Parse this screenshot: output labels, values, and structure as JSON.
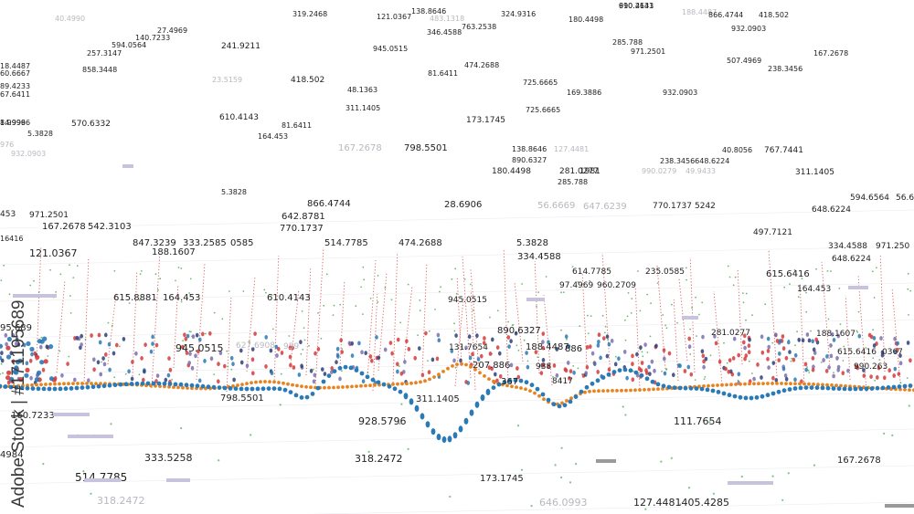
{
  "watermark": {
    "text": "Adobe Stock | #171195689"
  },
  "colors": {
    "blue": "#2a7ab5",
    "orange": "#e8821e",
    "red": "#d63a3a",
    "green": "#4aa84a",
    "navy": "#2b3f7a",
    "lavender": "#c8c3dc",
    "grid": "#d9d9e3"
  },
  "labels": [
    "990.2631",
    "188.4487",
    "319.2468",
    "40.4990",
    "138.8646",
    "324.9316",
    "866.4744",
    "418.502",
    "121.0367",
    "483.1318",
    "180.4498",
    "932.0903",
    "346.4588",
    "140.7233",
    "763.2538",
    "27.4969",
    "241.9211",
    "594.0564",
    "257.3147",
    "945.0515",
    "285.788",
    "971.2501",
    "167.2678",
    "507.4969",
    "238.3456",
    "81.6411",
    "474.2688",
    "858.3448",
    "610.4143",
    "23.5159",
    "418.502",
    "725.6665",
    "169.3886",
    "932.0903",
    "48.1363",
    "311.1405",
    "725.6665",
    "173.1745",
    "81.6411",
    "164.453",
    "570.6332",
    "5.3828",
    "167.2678",
    "798.5501",
    "138.8646",
    "127.4481",
    "40.8056",
    "767.7441",
    "890.6327",
    "238.3456648.6224",
    "180.4498",
    "281.0277",
    "1981",
    "285.788",
    "990.0279",
    "49.9433",
    "311.1405",
    "5.3828",
    "866.4744",
    "28.6906",
    "56.6669",
    "647.6239",
    "770.1737",
    "5242",
    "594.6564",
    "56.6",
    "971.2501",
    "167.2678",
    "542.3103",
    "642.8781",
    "770.1737",
    "648.6224",
    "847.3239",
    "333.2585",
    "0585",
    "514.7785",
    "474.2688",
    "5.3828",
    "497.7121",
    "334.4588",
    "971.250",
    "121.0367",
    "188.1607",
    "334.4588",
    "648.6224",
    "614.7785",
    "235.0585",
    "615.6416",
    "960.2709",
    "615.8881",
    "164.453",
    "610.4143",
    "945.0515",
    "164.453",
    "890.6327",
    "281.0277",
    "188.1607",
    "945.0515",
    "627.6908",
    "959",
    "131.7654",
    "188.4487",
    "886",
    "615.6416",
    "0367",
    "990.263",
    "207.886",
    "938",
    "798.5501",
    "311.1405",
    "367",
    "8417",
    "928.5796",
    "111.7654",
    "160.7233",
    "333.5258",
    "318.2472",
    "4984",
    "514.7785",
    "173.1745",
    "167.2678",
    "318.2472",
    "646.0993",
    "127.4481405.4285",
    "14.9996",
    "95.689",
    "8.9996",
    "976",
    "932.0903",
    "16416",
    "453",
    "18.4487",
    "60.6667",
    "89.4233",
    "67.6411",
    "97.4969",
    "610.4143"
  ]
}
